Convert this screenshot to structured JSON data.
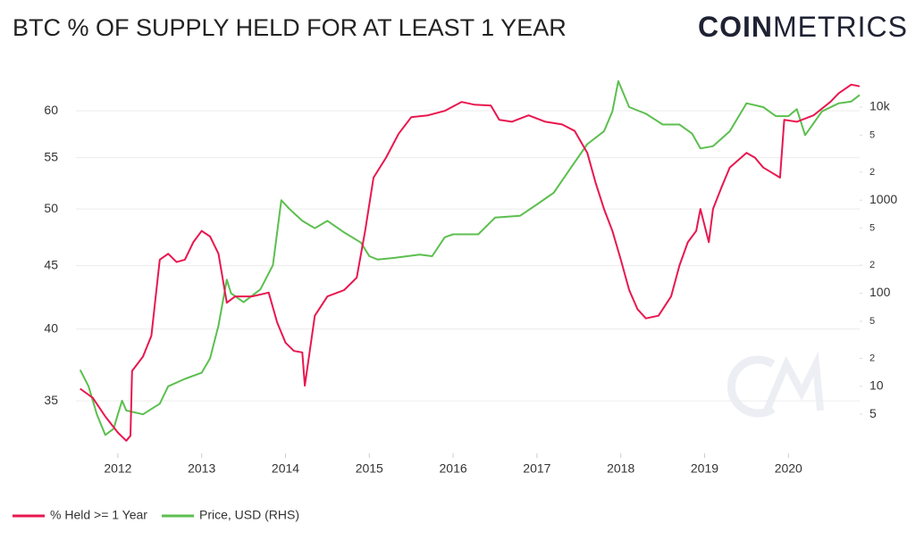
{
  "logo": {
    "bold": "COIN",
    "light": "METRICS"
  },
  "chart_data": {
    "type": "line",
    "title": "BTC % OF SUPPLY HELD FOR AT LEAST 1 YEAR",
    "xlim": [
      2011.5,
      2020.85
    ],
    "xticks": [
      2012,
      2013,
      2014,
      2015,
      2016,
      2017,
      2018,
      2019,
      2020
    ],
    "ylim": [
      31.9,
      63.5
    ],
    "yticks": [
      35,
      40,
      45,
      50,
      55,
      60
    ],
    "ylog": true,
    "y2lim": [
      2.03,
      19400
    ],
    "y2log": true,
    "y2ticks": [
      5,
      10,
      {
        "value": 20,
        "label": "2"
      },
      {
        "value": 50,
        "label": "5"
      },
      100,
      {
        "value": 200,
        "label": "2"
      },
      {
        "value": 500,
        "label": "5"
      },
      1000,
      {
        "value": 2000,
        "label": "2"
      },
      {
        "value": 5000,
        "label": "5"
      },
      {
        "value": 10000,
        "label": "10k"
      }
    ],
    "grid": true,
    "legend": "bottom-left",
    "series": [
      {
        "name": "% Held >= 1 Year",
        "color": "#e8174f",
        "x": [
          2011.55,
          2011.7,
          2011.85,
          2012.0,
          2012.1,
          2012.15,
          2012.17,
          2012.3,
          2012.4,
          2012.5,
          2012.6,
          2012.7,
          2012.8,
          2012.9,
          2013.0,
          2013.1,
          2013.2,
          2013.3,
          2013.4,
          2013.6,
          2013.8,
          2013.9,
          2014.0,
          2014.1,
          2014.2,
          2014.23,
          2014.35,
          2014.5,
          2014.7,
          2014.85,
          2014.95,
          2015.05,
          2015.2,
          2015.35,
          2015.5,
          2015.7,
          2015.9,
          2016.0,
          2016.1,
          2016.25,
          2016.45,
          2016.55,
          2016.7,
          2016.9,
          2017.1,
          2017.3,
          2017.45,
          2017.6,
          2017.7,
          2017.8,
          2017.9,
          2018.0,
          2018.1,
          2018.2,
          2018.3,
          2018.45,
          2018.6,
          2018.7,
          2018.8,
          2018.9,
          2018.95,
          2019.05,
          2019.1,
          2019.2,
          2019.3,
          2019.5,
          2019.6,
          2019.7,
          2019.8,
          2019.9,
          2019.95,
          2020.1,
          2020.3,
          2020.5,
          2020.6,
          2020.75,
          2020.85
        ],
        "values": [
          35.8,
          35.2,
          34,
          33,
          32.5,
          32.8,
          37,
          38,
          39.5,
          45.5,
          46,
          45.3,
          45.5,
          47,
          48,
          47.5,
          46,
          42,
          42.5,
          42.5,
          42.8,
          40.5,
          39,
          38.4,
          38.3,
          36,
          41,
          42.5,
          43,
          44,
          48,
          53,
          55,
          57.5,
          59.3,
          59.5,
          60,
          60.5,
          61,
          60.7,
          60.6,
          59,
          58.8,
          59.5,
          58.8,
          58.5,
          57.8,
          55.5,
          52.5,
          50,
          48,
          45.5,
          43,
          41.5,
          40.8,
          41,
          42.5,
          45,
          47,
          48,
          50,
          47,
          50,
          52,
          54,
          55.5,
          55,
          54,
          53.5,
          53,
          59,
          58.8,
          59.5,
          61,
          62,
          63,
          62.8
        ]
      },
      {
        "name": "Price, USD (RHS)",
        "color": "#5cbf4f",
        "axis": "y2",
        "x": [
          2011.55,
          2011.65,
          2011.75,
          2011.85,
          2011.95,
          2012.0,
          2012.05,
          2012.1,
          2012.3,
          2012.5,
          2012.6,
          2012.8,
          2013.0,
          2013.1,
          2013.2,
          2013.3,
          2013.35,
          2013.5,
          2013.7,
          2013.85,
          2013.95,
          2014.05,
          2014.2,
          2014.35,
          2014.5,
          2014.7,
          2014.9,
          2015.0,
          2015.1,
          2015.3,
          2015.6,
          2015.75,
          2015.9,
          2016.0,
          2016.3,
          2016.5,
          2016.8,
          2017.0,
          2017.2,
          2017.4,
          2017.6,
          2017.8,
          2017.9,
          2017.97,
          2018.1,
          2018.3,
          2018.5,
          2018.7,
          2018.85,
          2018.95,
          2019.1,
          2019.3,
          2019.5,
          2019.7,
          2019.85,
          2020.0,
          2020.1,
          2020.2,
          2020.4,
          2020.6,
          2020.75,
          2020.85
        ],
        "values": [
          15,
          10,
          5,
          3,
          3.5,
          5,
          7,
          5.5,
          5,
          6.5,
          10,
          12,
          14,
          20,
          45,
          140,
          100,
          80,
          110,
          200,
          1000,
          800,
          600,
          500,
          600,
          450,
          350,
          250,
          230,
          240,
          260,
          250,
          400,
          430,
          430,
          650,
          680,
          900,
          1200,
          2200,
          4000,
          5500,
          9000,
          19000,
          10000,
          8500,
          6500,
          6500,
          5200,
          3600,
          3800,
          5500,
          11000,
          10000,
          8000,
          8000,
          9500,
          5000,
          9000,
          11000,
          11500,
          13500
        ]
      }
    ]
  }
}
